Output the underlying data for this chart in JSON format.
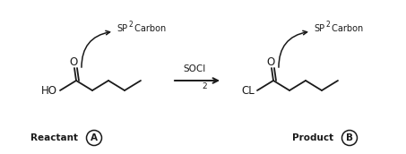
{
  "bg_color": "#ffffff",
  "text_color": "#1a1a1a",
  "mol_fontsize": 8.5,
  "sp2_text": "SP",
  "sp2_super": "2",
  "sp2_rest": " Carbon",
  "reactant_label": "Reactant",
  "reactant_circle": "A",
  "product_label": "Product",
  "product_circle": "B",
  "reagent": "SOCl",
  "reagent_sub": "2",
  "ho_label": "HO",
  "o_label": "O",
  "cl_label": "CL",
  "lw": 1.3
}
